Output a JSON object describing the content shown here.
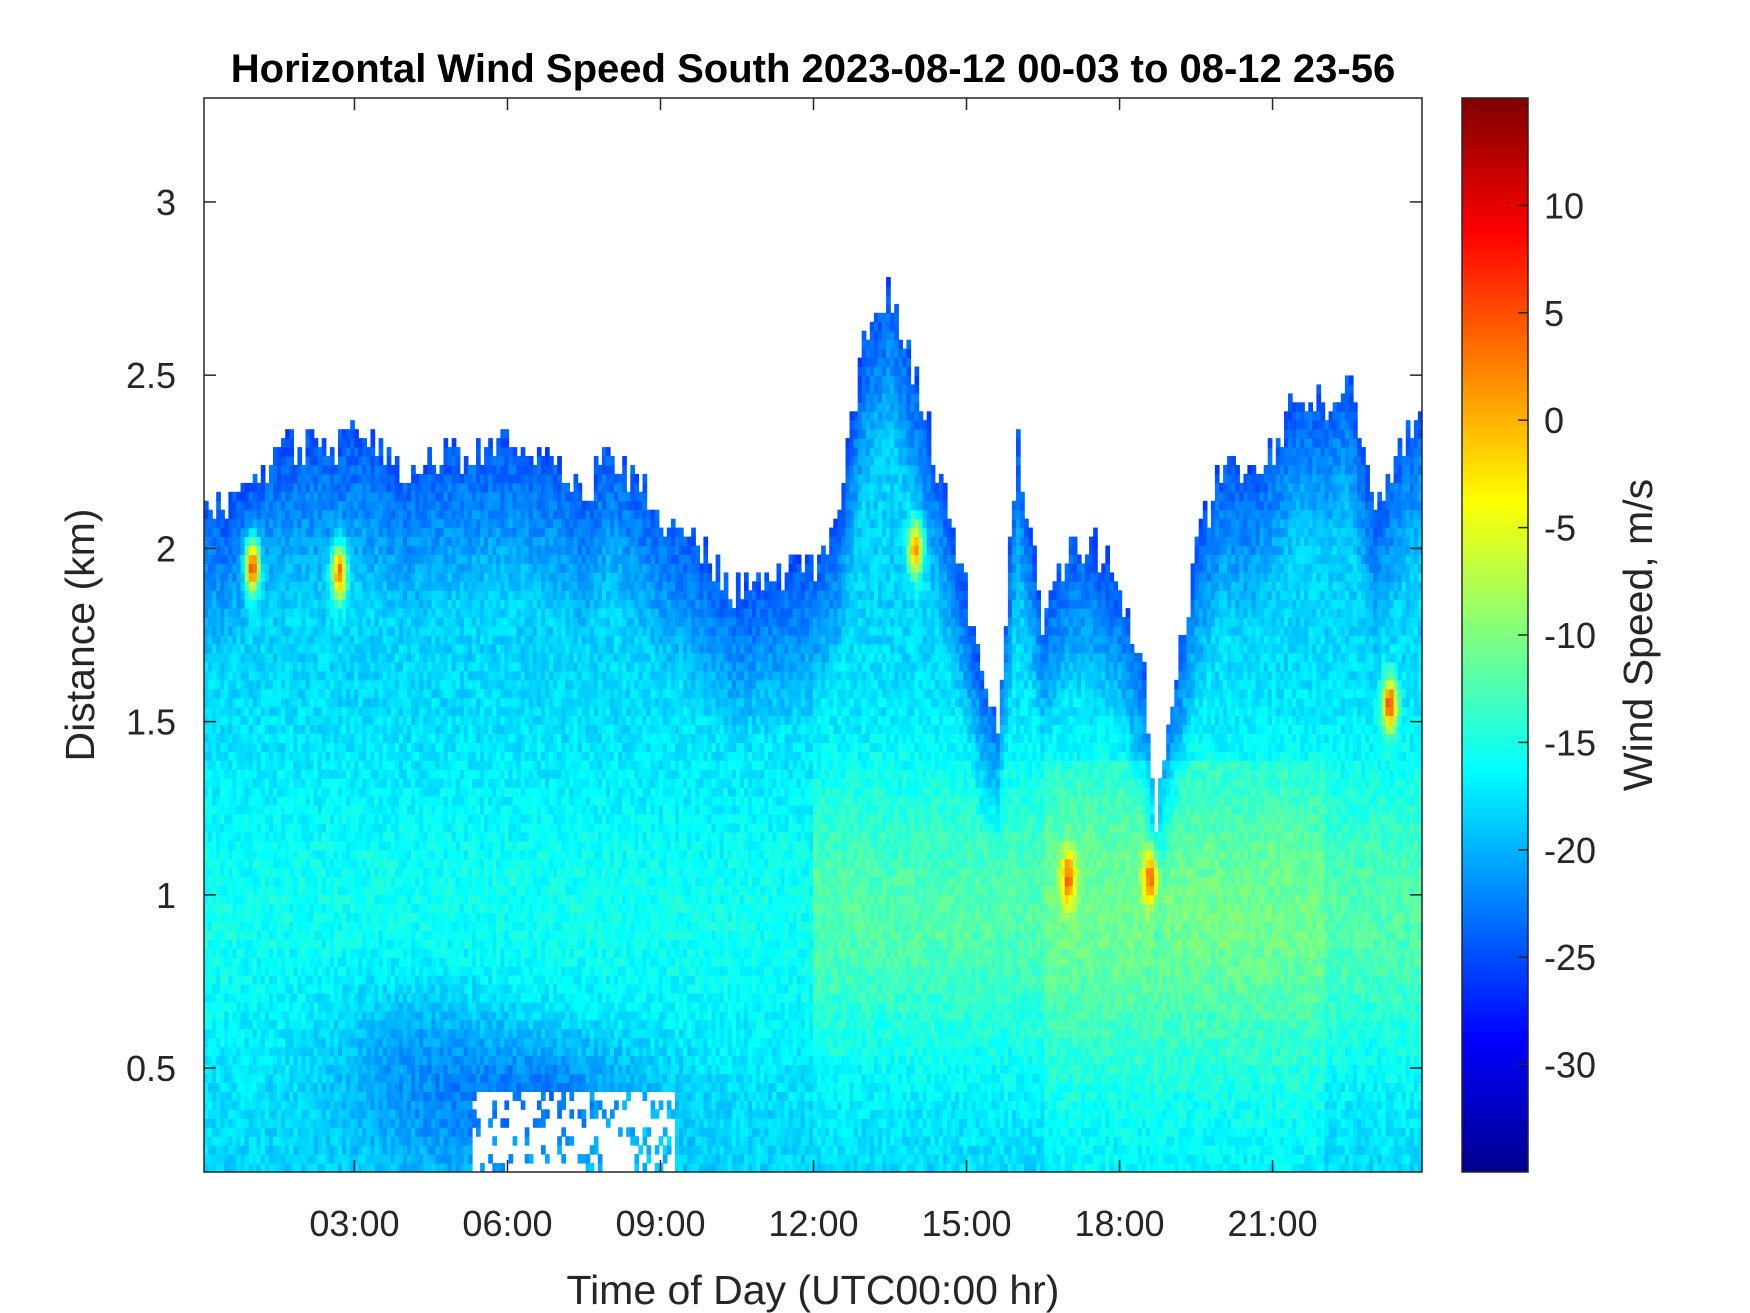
{
  "chart_data": {
    "type": "heatmap",
    "title": "Horizontal Wind Speed South 2023-08-12 00-03 to 08-12 23-56",
    "xlabel": "Time of Day (UTC00:00 hr)",
    "ylabel": "Distance (km)",
    "colorbar_label": "Wind Speed, m/s",
    "colormap": "jet",
    "xlim_hours": [
      0.05,
      23.93
    ],
    "ylim_km": [
      0.2,
      3.3
    ],
    "clim": [
      -35,
      15
    ],
    "x_ticks": [
      {
        "value": 3,
        "label": "03:00"
      },
      {
        "value": 6,
        "label": "06:00"
      },
      {
        "value": 9,
        "label": "09:00"
      },
      {
        "value": 12,
        "label": "12:00"
      },
      {
        "value": 15,
        "label": "15:00"
      },
      {
        "value": 18,
        "label": "18:00"
      },
      {
        "value": 21,
        "label": "21:00"
      }
    ],
    "y_ticks": [
      {
        "value": 0.5,
        "label": "0.5"
      },
      {
        "value": 1,
        "label": "1"
      },
      {
        "value": 1.5,
        "label": "1.5"
      },
      {
        "value": 2,
        "label": "2"
      },
      {
        "value": 2.5,
        "label": "2.5"
      },
      {
        "value": 3,
        "label": "3"
      }
    ],
    "colorbar_ticks": [
      {
        "value": 10,
        "label": "10"
      },
      {
        "value": 5,
        "label": "5"
      },
      {
        "value": 0,
        "label": "0"
      },
      {
        "value": -5,
        "label": "-5"
      },
      {
        "value": -10,
        "label": "-10"
      },
      {
        "value": -15,
        "label": "-15"
      },
      {
        "value": -20,
        "label": "-20"
      },
      {
        "value": -25,
        "label": "-25"
      },
      {
        "value": -30,
        "label": "-30"
      }
    ],
    "data_top_km": [
      [
        0.05,
        2.12
      ],
      [
        0.5,
        2.1
      ],
      [
        1.0,
        2.2
      ],
      [
        1.5,
        2.28
      ],
      [
        2.0,
        2.3
      ],
      [
        2.7,
        2.3
      ],
      [
        3.0,
        2.33
      ],
      [
        4.0,
        2.22
      ],
      [
        5.0,
        2.28
      ],
      [
        6.0,
        2.3
      ],
      [
        7.0,
        2.25
      ],
      [
        7.5,
        2.15
      ],
      [
        8.0,
        2.3
      ],
      [
        9.0,
        2.1
      ],
      [
        9.5,
        2.05
      ],
      [
        10.0,
        1.95
      ],
      [
        10.5,
        1.86
      ],
      [
        11.0,
        1.9
      ],
      [
        11.5,
        1.93
      ],
      [
        12.0,
        1.95
      ],
      [
        12.5,
        2.1
      ],
      [
        13.0,
        2.6
      ],
      [
        13.5,
        2.75
      ],
      [
        14.0,
        2.5
      ],
      [
        14.5,
        2.2
      ],
      [
        15.0,
        1.85
      ],
      [
        15.3,
        1.6
      ],
      [
        15.6,
        1.45
      ],
      [
        16.0,
        2.3
      ],
      [
        16.5,
        1.8
      ],
      [
        17.0,
        2.0
      ],
      [
        17.5,
        2.0
      ],
      [
        18.0,
        1.9
      ],
      [
        18.5,
        1.6
      ],
      [
        18.7,
        1.2
      ],
      [
        19.0,
        1.5
      ],
      [
        19.5,
        2.0
      ],
      [
        20.0,
        2.25
      ],
      [
        20.5,
        2.2
      ],
      [
        21.0,
        2.3
      ],
      [
        21.5,
        2.45
      ],
      [
        22.0,
        2.4
      ],
      [
        22.5,
        2.5
      ],
      [
        23.0,
        2.1
      ],
      [
        23.5,
        2.3
      ],
      [
        23.93,
        2.4
      ]
    ],
    "field_description_points": [
      {
        "x_hours": 1.0,
        "y_km": 1.95,
        "value": 8
      },
      {
        "x_hours": 2.7,
        "y_km": 1.93,
        "value": 6
      },
      {
        "x_hours": 6.5,
        "y_km": 0.45,
        "value": -28
      },
      {
        "x_hours": 14.0,
        "y_km": 2.0,
        "value": 4
      },
      {
        "x_hours": 17.0,
        "y_km": 1.05,
        "value": 6
      },
      {
        "x_hours": 18.6,
        "y_km": 1.05,
        "value": 6
      },
      {
        "x_hours": 23.3,
        "y_km": 1.55,
        "value": 8
      }
    ],
    "gaps": [
      {
        "x_hours": [
          5.3,
          9.3
        ],
        "y_km": [
          0.2,
          0.42
        ]
      }
    ]
  }
}
